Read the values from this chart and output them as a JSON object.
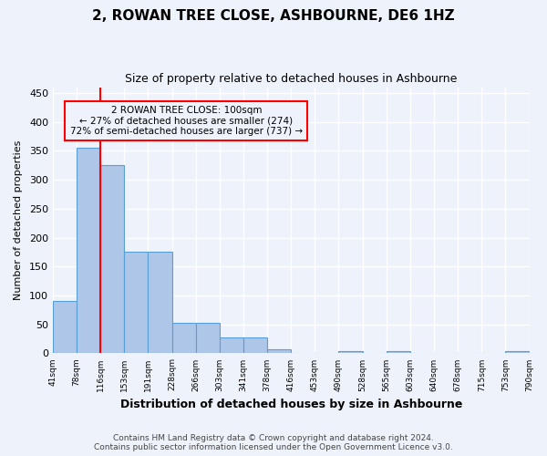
{
  "title": "2, ROWAN TREE CLOSE, ASHBOURNE, DE6 1HZ",
  "subtitle": "Size of property relative to detached houses in Ashbourne",
  "xlabel": "Distribution of detached houses by size in Ashbourne",
  "ylabel": "Number of detached properties",
  "bar_values": [
    91,
    356,
    325,
    175,
    175,
    53,
    53,
    27,
    27,
    7,
    0,
    0,
    4,
    0,
    4,
    0,
    0,
    0,
    0,
    4
  ],
  "bin_labels": [
    "41sqm",
    "78sqm",
    "116sqm",
    "153sqm",
    "191sqm",
    "228sqm",
    "266sqm",
    "303sqm",
    "341sqm",
    "378sqm",
    "416sqm",
    "453sqm",
    "490sqm",
    "528sqm",
    "565sqm",
    "603sqm",
    "640sqm",
    "678sqm",
    "715sqm",
    "753sqm",
    "790sqm"
  ],
  "bar_color": "#aec6e8",
  "bar_edge_color": "#5a9fd4",
  "ylim": [
    0,
    460
  ],
  "yticks": [
    0,
    50,
    100,
    150,
    200,
    250,
    300,
    350,
    400,
    450
  ],
  "red_line_bar_index": 2,
  "annotation_text_line1": "2 ROWAN TREE CLOSE: 100sqm",
  "annotation_text_line2": "← 27% of detached houses are smaller (274)",
  "annotation_text_line3": "72% of semi-detached houses are larger (737) →",
  "footer_line1": "Contains HM Land Registry data © Crown copyright and database right 2024.",
  "footer_line2": "Contains public sector information licensed under the Open Government Licence v3.0.",
  "background_color": "#eef3fb",
  "grid_color": "#ffffff"
}
